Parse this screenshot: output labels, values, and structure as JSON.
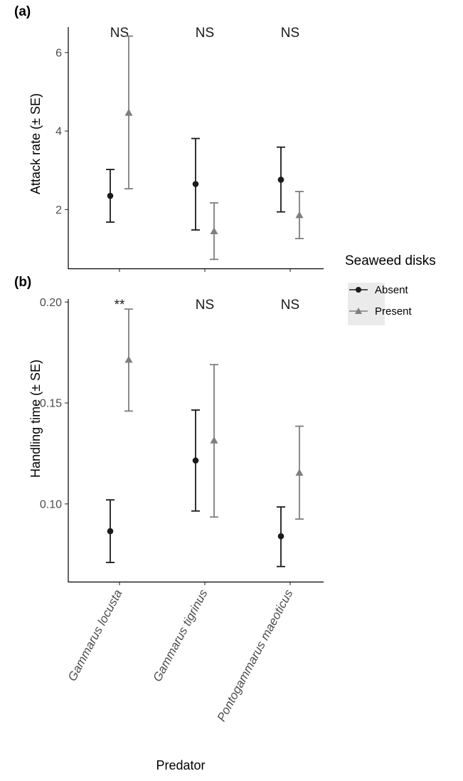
{
  "chart_data": [
    {
      "type": "scatter",
      "panel_label": "(a)",
      "ylabel": "Attack rate (± SE)",
      "yticks": [
        2,
        4,
        6
      ],
      "ylim": [
        0.5,
        6.65
      ],
      "categories": [
        "Gammarus locusta",
        "Gammarus tigrinus",
        "Pontogammarus maeoticus"
      ],
      "significance": [
        "NS",
        "NS",
        "NS"
      ],
      "series": [
        {
          "name": "Absent",
          "marker": "circle",
          "color": "#1a1a1a",
          "values": [
            2.35,
            2.65,
            2.76
          ],
          "lower": [
            1.68,
            1.48,
            1.94
          ],
          "upper": [
            3.02,
            3.81,
            3.59
          ]
        },
        {
          "name": "Present",
          "marker": "triangle",
          "color": "#7f7f7f",
          "values": [
            4.47,
            1.45,
            1.86
          ],
          "lower": [
            2.53,
            0.73,
            1.26
          ],
          "upper": [
            6.42,
            2.17,
            2.46
          ]
        }
      ]
    },
    {
      "type": "scatter",
      "panel_label": "(b)",
      "ylabel": "Handling time (± SE)",
      "yticks": [
        "0.10",
        "0.15",
        "0.20"
      ],
      "ylim": [
        0.0615,
        0.2015
      ],
      "categories": [
        "Gammarus locusta",
        "Gammarus tigrinus",
        "Pontogammarus maeoticus"
      ],
      "significance": [
        "**",
        "NS",
        "NS"
      ],
      "series": [
        {
          "name": "Absent",
          "marker": "circle",
          "color": "#1a1a1a",
          "values": [
            0.0865,
            0.1215,
            0.084
          ],
          "lower": [
            0.071,
            0.0965,
            0.069
          ],
          "upper": [
            0.102,
            0.1465,
            0.0985
          ]
        },
        {
          "name": "Present",
          "marker": "triangle",
          "color": "#7f7f7f",
          "values": [
            0.1715,
            0.1315,
            0.1155
          ],
          "lower": [
            0.146,
            0.0935,
            0.0925
          ],
          "upper": [
            0.1965,
            0.169,
            0.1385
          ]
        }
      ]
    }
  ],
  "xlabel": "Predator",
  "legend": {
    "title": "Seaweed disks",
    "placement": "right",
    "entries": [
      "Absent",
      "Present"
    ]
  }
}
